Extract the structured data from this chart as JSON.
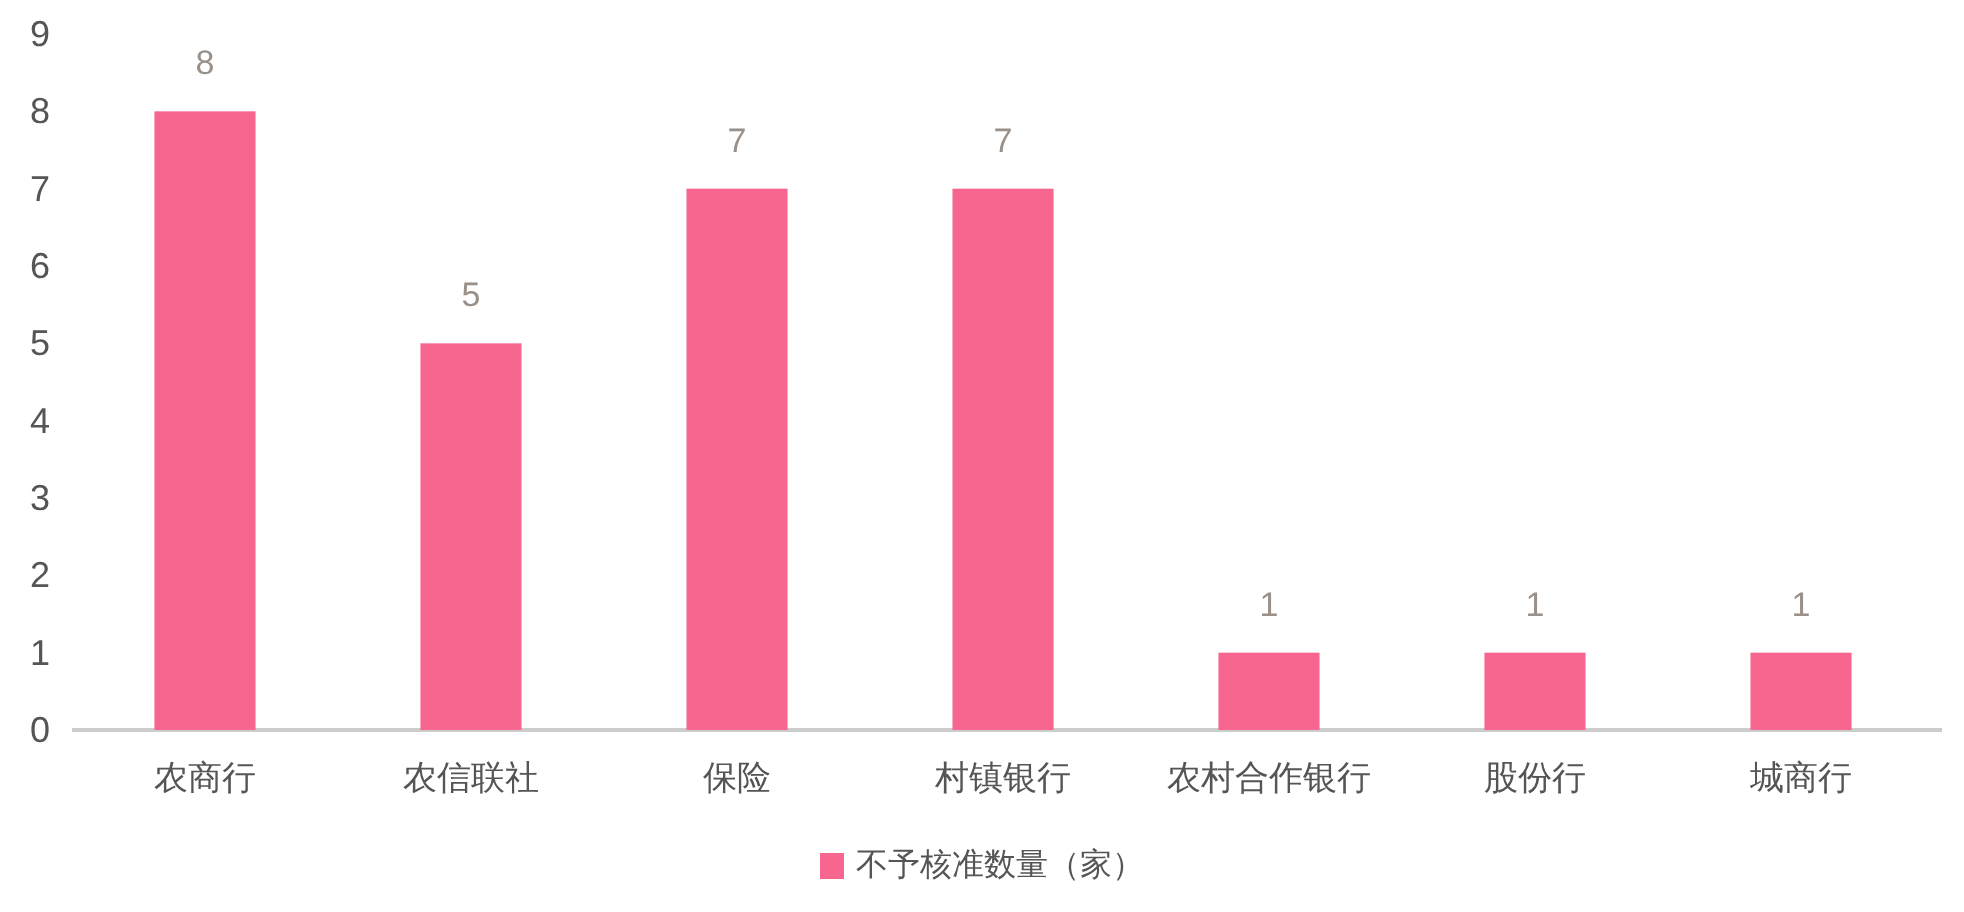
{
  "chart_data": {
    "type": "bar",
    "categories": [
      "农商行",
      "农信联社",
      "保险",
      "村镇银行",
      "农村合作银行",
      "股份行",
      "城商行"
    ],
    "series": [
      {
        "name": "不予核准数量（家）",
        "color": "#f7668f",
        "values": [
          8,
          5,
          7,
          7,
          1,
          1,
          1
        ]
      }
    ],
    "ylim": [
      0,
      9
    ],
    "yticks": [
      0,
      1,
      2,
      3,
      4,
      5,
      6,
      7,
      8,
      9
    ],
    "data_labels": true,
    "legend": "bottom"
  }
}
